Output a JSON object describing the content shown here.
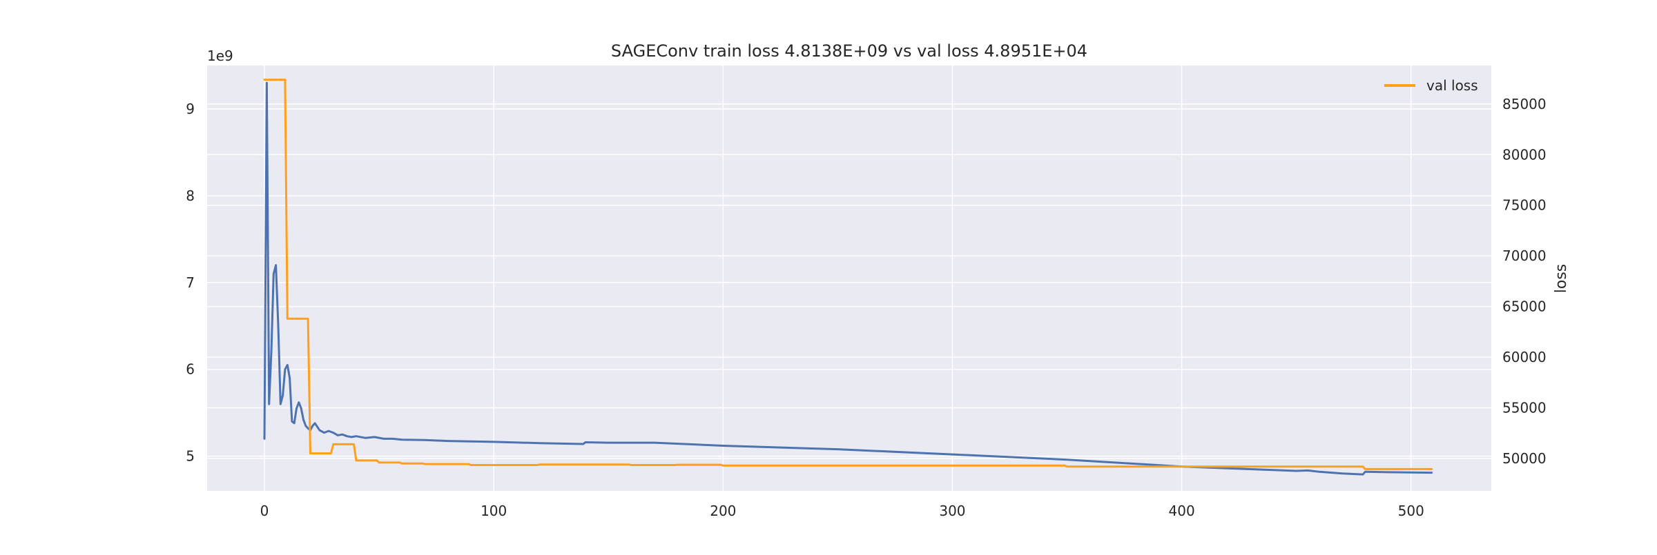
{
  "colors": {
    "plot_background": "#eaeaf2",
    "grid": "#ffffff",
    "train_series": "#4c72b0",
    "val_series": "#ff9f1c",
    "text": "#262626"
  },
  "chart_data": {
    "type": "line",
    "title": "SAGEConv train loss 4.8138E+09 vs val loss 4.8951E+04",
    "xlabel": "",
    "ylabel_left": "",
    "ylabel_right": "loss",
    "left_axis_offset_text": "1e9",
    "grid": true,
    "legend": {
      "placement": "top-right",
      "entries": [
        "val loss"
      ]
    },
    "x_axis": {
      "range": [
        -25,
        535
      ],
      "ticks": [
        0,
        100,
        200,
        300,
        400,
        500
      ],
      "tick_labels": [
        "0",
        "100",
        "200",
        "300",
        "400",
        "500"
      ]
    },
    "y_left": {
      "range": [
        4.6,
        9.5
      ],
      "scale": "1e9",
      "ticks": [
        5,
        6,
        7,
        8,
        9
      ],
      "tick_labels": [
        "5",
        "6",
        "7",
        "8",
        "9"
      ]
    },
    "y_right": {
      "range": [
        46800,
        88800
      ],
      "ticks": [
        50000,
        55000,
        60000,
        65000,
        70000,
        75000,
        80000,
        85000
      ],
      "tick_labels": [
        "50000",
        "55000",
        "60000",
        "65000",
        "70000",
        "75000",
        "80000",
        "85000"
      ]
    },
    "series": [
      {
        "axis": "left",
        "color": "#4c72b0",
        "x": [
          0,
          1,
          2,
          3,
          4,
          5,
          6,
          7,
          8,
          9,
          10,
          11,
          12,
          13,
          14,
          15,
          16,
          17,
          18,
          19,
          20,
          21,
          22,
          24,
          26,
          28,
          30,
          32,
          34,
          36,
          38,
          40,
          44,
          48,
          52,
          56,
          60,
          70,
          80,
          90,
          100,
          120,
          139,
          140,
          150,
          170,
          200,
          250,
          300,
          350,
          400,
          420,
          440,
          450,
          455,
          460,
          470,
          479,
          480,
          490,
          509
        ],
        "y": [
          5.2,
          9.3,
          5.6,
          6.2,
          7.1,
          7.2,
          6.5,
          5.6,
          5.7,
          6.0,
          6.05,
          5.9,
          5.4,
          5.38,
          5.55,
          5.62,
          5.55,
          5.42,
          5.35,
          5.32,
          5.3,
          5.35,
          5.38,
          5.3,
          5.27,
          5.29,
          5.27,
          5.24,
          5.25,
          5.23,
          5.22,
          5.23,
          5.21,
          5.22,
          5.2,
          5.2,
          5.19,
          5.185,
          5.175,
          5.17,
          5.165,
          5.15,
          5.14,
          5.16,
          5.155,
          5.155,
          5.12,
          5.08,
          5.02,
          4.96,
          4.88,
          4.86,
          4.84,
          4.83,
          4.835,
          4.82,
          4.8,
          4.79,
          4.82,
          4.815,
          4.81
        ]
      },
      {
        "name": "val loss",
        "axis": "right",
        "color": "#ff9f1c",
        "x": [
          0,
          9,
          10,
          19,
          20,
          29,
          30,
          39,
          40,
          49,
          50,
          59,
          60,
          69,
          70,
          89,
          90,
          119,
          120,
          159,
          160,
          179,
          180,
          199,
          200,
          349,
          350,
          479,
          480,
          509
        ],
        "y": [
          87400,
          87400,
          63800,
          63800,
          50500,
          50500,
          51400,
          51400,
          49800,
          49800,
          49600,
          49600,
          49500,
          49500,
          49450,
          49450,
          49350,
          49350,
          49400,
          49400,
          49350,
          49350,
          49380,
          49380,
          49300,
          49300,
          49200,
          49200,
          48950,
          48950
        ]
      }
    ]
  }
}
